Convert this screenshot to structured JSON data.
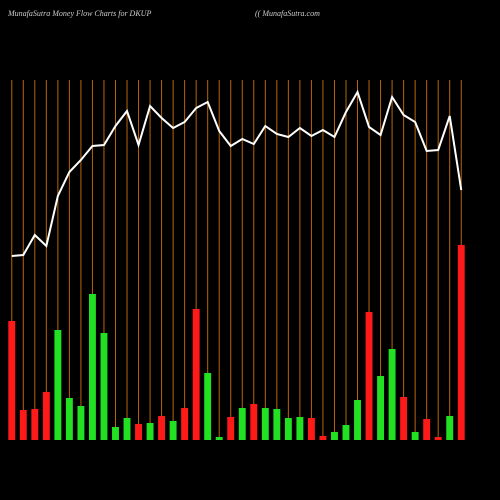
{
  "chart_data": {
    "type": "bar",
    "title": "MunafaSutra  Money Flow  Charts for DKUP",
    "subtitle": "(( MunafaSutra.com",
    "categories": [
      null,
      null,
      null,
      null,
      null,
      null,
      null,
      null,
      null,
      null,
      null,
      null,
      null,
      null,
      null,
      null,
      null,
      null,
      null,
      null,
      null,
      null,
      null,
      null,
      null,
      null,
      null,
      null,
      null,
      null,
      null,
      null,
      null,
      null,
      null,
      null,
      null,
      null,
      null,
      null
    ],
    "values": [
      119,
      30,
      31,
      48,
      110,
      42,
      34,
      146,
      107,
      13,
      22,
      16,
      17,
      24,
      19,
      32,
      131,
      67,
      3,
      23,
      32,
      36,
      32,
      31,
      22,
      23,
      22,
      4,
      8,
      15,
      40,
      128,
      64,
      91,
      43,
      8,
      21,
      3,
      24,
      195
    ],
    "bar_colors": [
      "#ff1a1a",
      "#ff1a1a",
      "#ff1a1a",
      "#ff1a1a",
      "#22e022",
      "#22e022",
      "#22e022",
      "#22e022",
      "#22e022",
      "#22e022",
      "#22e022",
      "#ff1a1a",
      "#22e022",
      "#ff1a1a",
      "#22e022",
      "#ff1a1a",
      "#ff1a1a",
      "#22e022",
      "#22e022",
      "#ff1a1a",
      "#22e022",
      "#ff1a1a",
      "#22e022",
      "#22e022",
      "#22e022",
      "#22e022",
      "#ff1a1a",
      "#ff1a1a",
      "#22e022",
      "#22e022",
      "#22e022",
      "#ff1a1a",
      "#22e022",
      "#22e022",
      "#ff1a1a",
      "#22e022",
      "#ff1a1a",
      "#ff1a1a",
      "#22e022",
      "#ff1a1a"
    ],
    "line_values": [
      184,
      185,
      205,
      194,
      244,
      268,
      280,
      294,
      295,
      314,
      329,
      295,
      334,
      322,
      312,
      318,
      332,
      338,
      309,
      294,
      301,
      296,
      314,
      306,
      303,
      312,
      304,
      310,
      303,
      328,
      348,
      313,
      305,
      343,
      325,
      318,
      289,
      290,
      324,
      250
    ],
    "line_color": "#ffffff",
    "divider_color": "#b8650a",
    "ylim": [
      0,
      360
    ]
  }
}
